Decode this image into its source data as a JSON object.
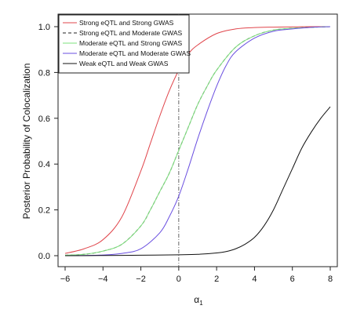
{
  "chart_data": {
    "type": "line",
    "ylabel": "Posterior Probability of Colocalization",
    "xlabel_symbol": "α",
    "xlabel_subscript": "1",
    "xlim": [
      -6,
      8
    ],
    "ylim": [
      0,
      1
    ],
    "x_ticks": [
      -6,
      -4,
      -2,
      0,
      2,
      4,
      6,
      8
    ],
    "x_tick_labels": [
      "−6",
      "−4",
      "−2",
      "0",
      "2",
      "4",
      "6",
      "8"
    ],
    "y_ticks": [
      0,
      0.2,
      0.4,
      0.6,
      0.8,
      1.0
    ],
    "y_tick_labels": [
      "0.0",
      "0.2",
      "0.4",
      "0.6",
      "0.8",
      "1.0"
    ],
    "grid": false,
    "legend_position": "top-left",
    "reference_line": {
      "x": 0,
      "style": "dash-dot",
      "color": "#555555"
    },
    "series": [
      {
        "name": "Strong eQTL and Strong GWAS",
        "color": "#E0454B",
        "dash": "solid",
        "x": [
          -6,
          -5,
          -4,
          -3,
          -2,
          -1.5,
          -1,
          -0.5,
          0,
          0.5,
          1,
          2,
          3,
          4,
          5,
          6,
          7,
          8
        ],
        "y": [
          0.01,
          0.03,
          0.07,
          0.17,
          0.37,
          0.49,
          0.61,
          0.72,
          0.81,
          0.88,
          0.92,
          0.97,
          0.99,
          0.996,
          0.998,
          0.999,
          1.0,
          1.0
        ]
      },
      {
        "name": "Strong eQTL and Moderate GWAS",
        "color": "#222222",
        "dash": "dashed",
        "x": [
          -6,
          -5,
          -4,
          -3,
          -2,
          -1.5,
          -1,
          -0.5,
          0,
          0.5,
          1,
          1.5,
          2,
          3,
          4,
          5,
          6,
          7,
          8
        ],
        "y": [
          0.002,
          0.006,
          0.02,
          0.05,
          0.13,
          0.2,
          0.28,
          0.36,
          0.46,
          0.56,
          0.66,
          0.74,
          0.81,
          0.91,
          0.96,
          0.985,
          0.993,
          0.997,
          1.0
        ]
      },
      {
        "name": "Moderate eQTL and Strong GWAS",
        "color": "#7CE07C",
        "dash": "solid",
        "x": [
          -6,
          -5,
          -4,
          -3,
          -2,
          -1.5,
          -1,
          -0.5,
          0,
          0.5,
          1,
          1.5,
          2,
          3,
          4,
          5,
          6,
          7,
          8
        ],
        "y": [
          0.002,
          0.006,
          0.02,
          0.05,
          0.13,
          0.2,
          0.28,
          0.36,
          0.46,
          0.56,
          0.66,
          0.74,
          0.81,
          0.91,
          0.96,
          0.985,
          0.993,
          0.997,
          1.0
        ]
      },
      {
        "name": "Moderate eQTL and Moderate GWAS",
        "color": "#6A4FE0",
        "dash": "solid",
        "x": [
          -6,
          -5,
          -4,
          -3,
          -2,
          -1,
          -0.5,
          0,
          0.5,
          1,
          1.5,
          2,
          2.5,
          3,
          4,
          5,
          6,
          7,
          8
        ],
        "y": [
          0.0,
          0.001,
          0.003,
          0.01,
          0.03,
          0.1,
          0.17,
          0.26,
          0.38,
          0.51,
          0.63,
          0.74,
          0.83,
          0.89,
          0.95,
          0.98,
          0.99,
          0.997,
          1.0
        ]
      },
      {
        "name": "Weak eQTL and Weak GWAS",
        "color": "#111111",
        "dash": "solid",
        "x": [
          -6,
          -4,
          -2,
          0,
          1,
          2,
          2.5,
          3,
          3.5,
          4,
          4.5,
          5,
          5.5,
          6,
          6.5,
          7,
          7.5,
          8
        ],
        "y": [
          0.0,
          0.001,
          0.002,
          0.004,
          0.006,
          0.012,
          0.018,
          0.03,
          0.05,
          0.08,
          0.13,
          0.2,
          0.29,
          0.38,
          0.47,
          0.54,
          0.6,
          0.65
        ]
      }
    ]
  }
}
